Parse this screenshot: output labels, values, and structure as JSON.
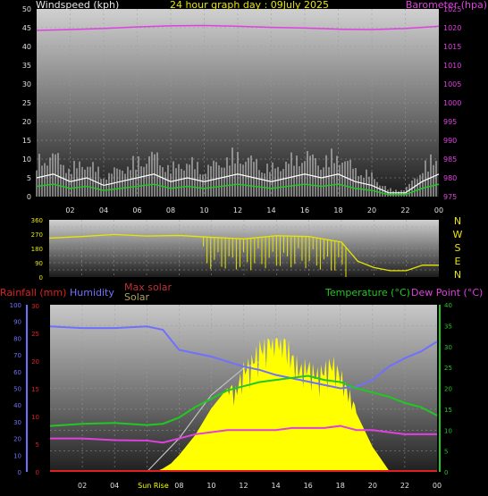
{
  "colors": {
    "wind": "#ffffff",
    "gust": "#d8d8d8",
    "avg_wind": "#22c822",
    "barometer": "#e040e0",
    "direction": "#e6e600",
    "rain": "#e02020",
    "humidity": "#7070ff",
    "max_solar": "#c0c0c0",
    "solar": "#ffff00",
    "temperature": "#22c822",
    "dew_point": "#e040e0",
    "green_axis": "#22c822",
    "yellow_axis": "#e6e600"
  },
  "top_panel": {
    "title": "24 hour graph day : 09July 2025",
    "left_label": "Windspeed (kph)",
    "right_label": "Barometer (hpa)",
    "left_ticks": [
      "0",
      "5",
      "10",
      "15",
      "20",
      "25",
      "30",
      "35",
      "40",
      "45",
      "50"
    ],
    "right_ticks": [
      "975",
      "980",
      "985",
      "990",
      "995",
      "1000",
      "1005",
      "1010",
      "1015",
      "1020",
      "1025"
    ],
    "x_ticks": [
      "02",
      "04",
      "06",
      "08",
      "10",
      "12",
      "14",
      "16",
      "18",
      "20",
      "22",
      "00"
    ]
  },
  "mid_panel": {
    "left_ticks": [
      "0",
      "45",
      "90",
      "135",
      "180",
      "225",
      "270",
      "315",
      "360"
    ],
    "visible_left_ticks": [
      "0",
      "90",
      "180",
      "270",
      "360"
    ],
    "compass": [
      "N",
      "W",
      "S",
      "E",
      "N"
    ]
  },
  "bottom_panel": {
    "labels": {
      "rainfall": "Rainfall (mm)",
      "humidity": "Humidity",
      "max_solar": "Max solar",
      "solar": "Solar",
      "temperature": "Temperature (°C)",
      "dew_point": "Dew Point (°C)"
    },
    "humidity_ticks": [
      "0",
      "10",
      "20",
      "30",
      "40",
      "50",
      "60",
      "70",
      "80",
      "90",
      "100"
    ],
    "rain_ticks": [
      "0",
      "5",
      "10",
      "15",
      "20",
      "25",
      "30"
    ],
    "temp_ticks": [
      "0",
      "5",
      "10",
      "15",
      "20",
      "25",
      "30",
      "35",
      "40"
    ],
    "x_ticks": [
      "02",
      "04",
      "Sun Rise",
      "08",
      "10",
      "12",
      "14",
      "16",
      "18",
      "20",
      "22",
      "00"
    ],
    "sunrise_label": "Sun Rise"
  },
  "chart_data": [
    {
      "type": "line",
      "title": "24 hour graph day : 09July 2025",
      "x_unit": "hour",
      "series": [
        {
          "name": "Windspeed (kph)",
          "axis": "left",
          "ylim": [
            0,
            50
          ],
          "x": [
            0,
            1,
            2,
            3,
            4,
            5,
            6,
            7,
            8,
            9,
            10,
            11,
            12,
            13,
            14,
            15,
            16,
            17,
            18,
            19,
            20,
            21,
            22,
            23,
            24
          ],
          "values": [
            5,
            6,
            4,
            5,
            3,
            4,
            5,
            6,
            4,
            5,
            4,
            5,
            6,
            5,
            4,
            5,
            6,
            5,
            6,
            4,
            3,
            1,
            1,
            4,
            6
          ]
        },
        {
          "name": "Barometer (hpa)",
          "axis": "right",
          "ylim": [
            975,
            1025
          ],
          "x": [
            0,
            2,
            4,
            6,
            8,
            10,
            12,
            14,
            16,
            18,
            20,
            22,
            24
          ],
          "values": [
            1019.3,
            1019.5,
            1019.8,
            1020.2,
            1020.5,
            1020.6,
            1020.4,
            1020.1,
            1019.9,
            1019.6,
            1019.5,
            1019.8,
            1020.4
          ]
        }
      ]
    },
    {
      "type": "scatter",
      "series": [
        {
          "name": "Wind direction",
          "ylim": [
            0,
            360
          ],
          "x": [
            0,
            2,
            4,
            6,
            8,
            10,
            12,
            14,
            16,
            18,
            19,
            20,
            21,
            22,
            23,
            24
          ],
          "values": [
            245,
            255,
            268,
            258,
            262,
            250,
            240,
            260,
            255,
            220,
            100,
            60,
            40,
            40,
            75,
            75
          ]
        }
      ]
    },
    {
      "type": "line",
      "series": [
        {
          "name": "Humidity",
          "axis": "humidity",
          "ylim": [
            0,
            100
          ],
          "x": [
            0,
            2,
            4,
            6,
            7,
            8,
            9,
            10,
            11,
            12,
            13,
            14,
            15,
            16,
            17,
            18,
            19,
            20,
            21,
            22,
            23,
            24
          ],
          "values": [
            87,
            86,
            86,
            87,
            85,
            73,
            71,
            69,
            66,
            63,
            61,
            58,
            56,
            54,
            52,
            50,
            51,
            55,
            63,
            68,
            72,
            78
          ]
        },
        {
          "name": "Temperature (°C)",
          "axis": "temp",
          "ylim": [
            0,
            40
          ],
          "x": [
            0,
            2,
            4,
            6,
            7,
            8,
            9,
            10,
            11,
            12,
            13,
            14,
            15,
            16,
            17,
            18,
            19,
            20,
            21,
            22,
            23,
            24
          ],
          "values": [
            11,
            11.5,
            11.7,
            11.2,
            11.5,
            13,
            15.5,
            17.5,
            19.5,
            20.5,
            21.5,
            22,
            22.5,
            23,
            22,
            21.5,
            20,
            19,
            18,
            16.5,
            15.5,
            13.5
          ]
        },
        {
          "name": "Dew Point (°C)",
          "axis": "temp",
          "ylim": [
            0,
            40
          ],
          "x": [
            0,
            2,
            4,
            6,
            7,
            8,
            9,
            10,
            11,
            12,
            13,
            14,
            15,
            16,
            17,
            18,
            19,
            20,
            21,
            22,
            23,
            24
          ],
          "values": [
            8,
            8,
            7.6,
            7.5,
            7,
            8,
            9,
            9.5,
            10,
            10,
            10,
            10,
            10.5,
            10.5,
            10.5,
            11,
            10,
            10,
            9.5,
            9,
            9,
            9
          ]
        },
        {
          "name": "Solar",
          "axis": "humidity",
          "ylim": [
            0,
            100
          ],
          "x": [
            0,
            6.5,
            7,
            7.5,
            8,
            8.5,
            9,
            9.5,
            10,
            10.5,
            11,
            11.5,
            12,
            12.5,
            13,
            13.5,
            14,
            14.5,
            15,
            15.5,
            16,
            16.5,
            17,
            17.5,
            18,
            18.5,
            19,
            19.5,
            20,
            20.5,
            21,
            24
          ],
          "values": [
            0,
            0,
            2,
            5,
            10,
            16,
            22,
            30,
            38,
            44,
            50,
            45,
            58,
            62,
            70,
            74,
            80,
            75,
            65,
            58,
            60,
            55,
            58,
            62,
            55,
            45,
            35,
            25,
            15,
            8,
            1,
            0
          ]
        },
        {
          "name": "Max solar",
          "axis": "humidity",
          "ylim": [
            0,
            100
          ],
          "x": [
            6,
            8,
            10,
            12,
            13,
            14,
            16,
            18,
            20,
            21
          ],
          "values": [
            0,
            20,
            46,
            62,
            66,
            64,
            50,
            32,
            10,
            0
          ]
        },
        {
          "name": "Rainfall (mm)",
          "axis": "rain",
          "ylim": [
            0,
            30
          ],
          "x": [
            0,
            24
          ],
          "values": [
            0,
            0
          ]
        }
      ]
    }
  ]
}
